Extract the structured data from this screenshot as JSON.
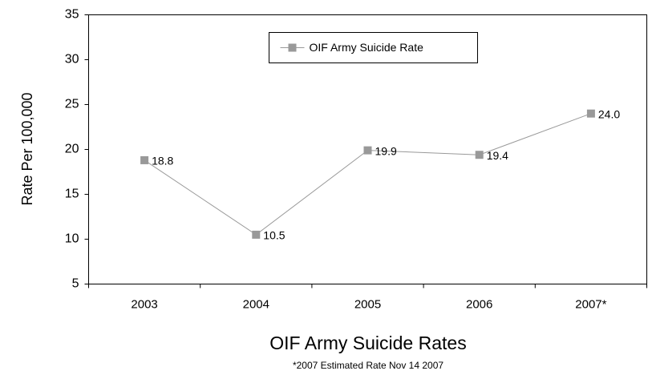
{
  "chart_data": {
    "type": "line",
    "title": "OIF Army Suicide Rates",
    "note": "*2007 Estimated Rate Nov 14 2007",
    "y_label": "Rate Per 100,000",
    "categories": [
      "2003",
      "2004",
      "2005",
      "2006",
      "2007*"
    ],
    "series": [
      {
        "name": "OIF Army Suicide Rate",
        "color": "#999999",
        "values": [
          18.8,
          10.5,
          19.9,
          19.4,
          24.0
        ],
        "value_labels": [
          "18.8",
          "10.5",
          "19.9",
          "19.4",
          "24.0"
        ]
      }
    ],
    "ylim": [
      5,
      35
    ],
    "yticks": [
      5,
      10,
      15,
      20,
      25,
      30,
      35
    ],
    "legend": "top"
  }
}
